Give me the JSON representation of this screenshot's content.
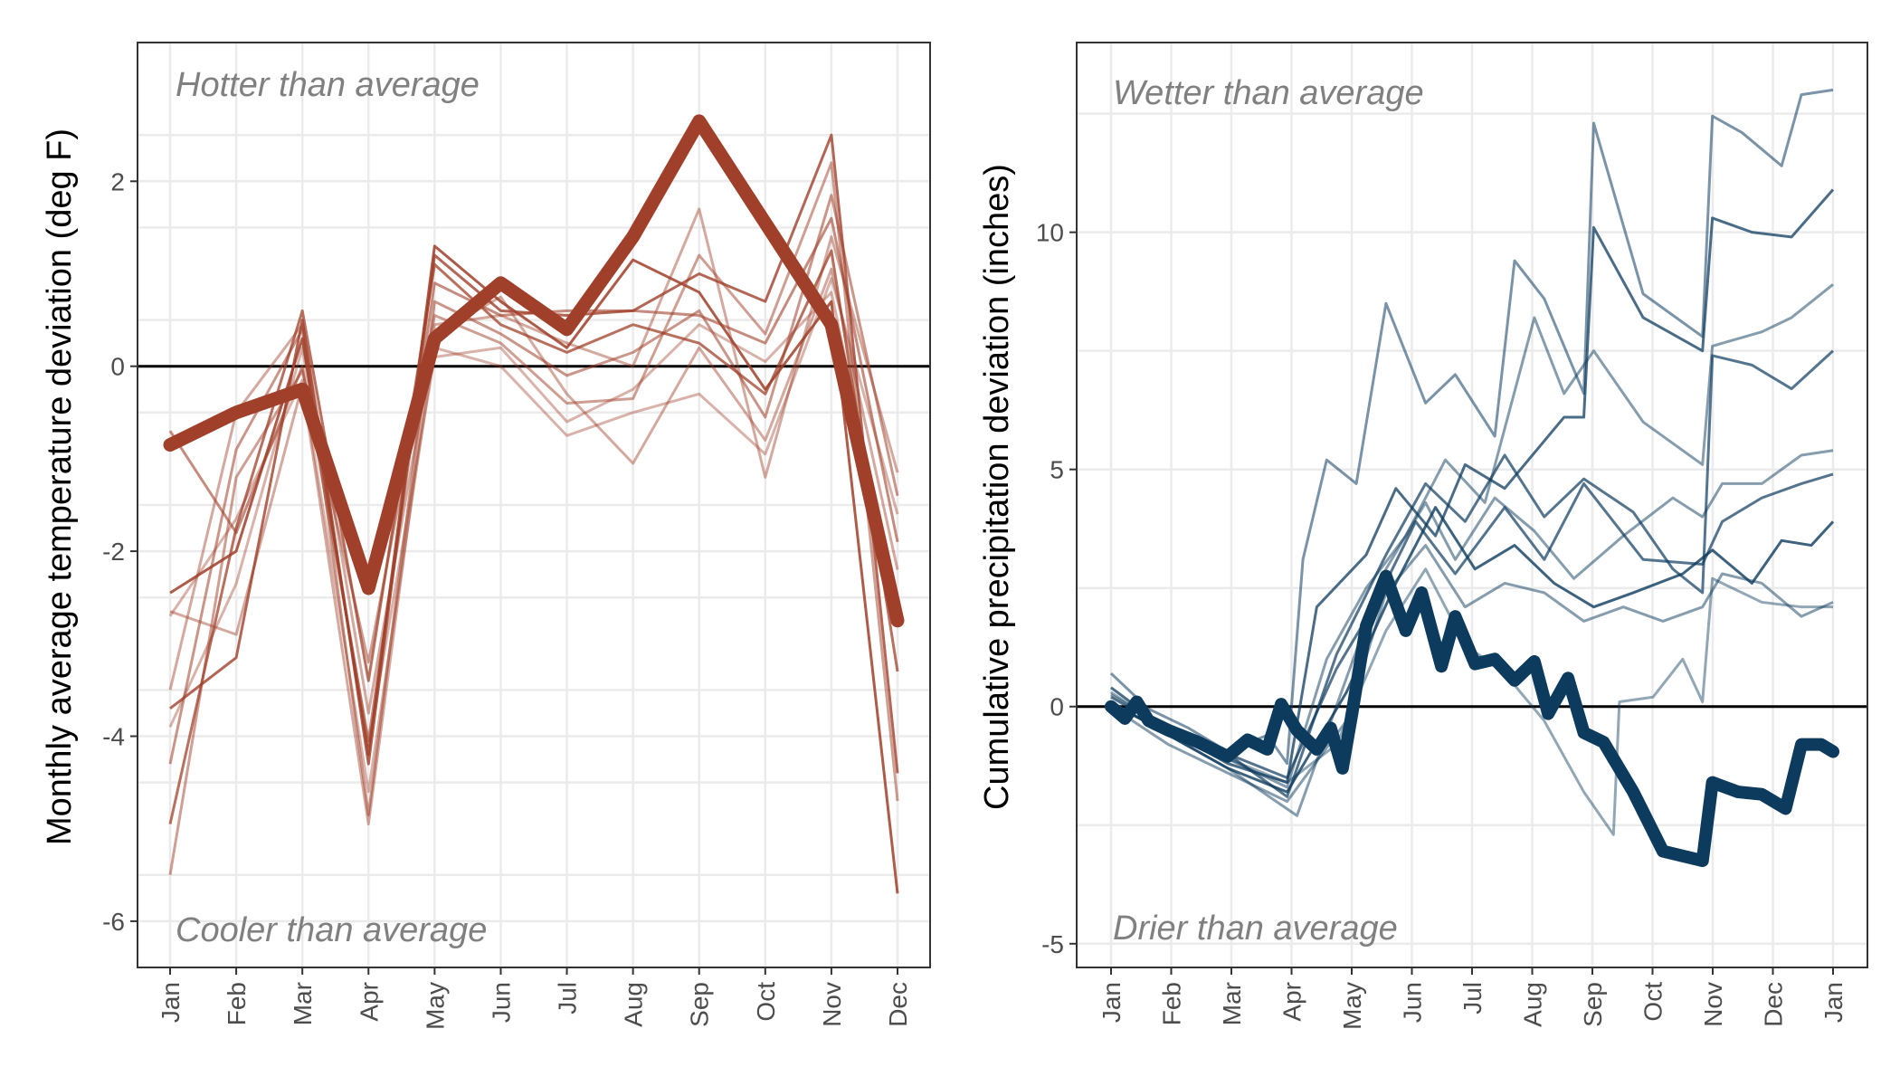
{
  "colors": {
    "temperature": "#a0402a",
    "precipitation": "#0d3b5e",
    "grid": "#ebebeb",
    "annotation": "#808080"
  },
  "chart_data": [
    {
      "type": "line",
      "title": "",
      "xlabel": "",
      "ylabel": "Monthly average temperature deviation (deg F)",
      "ylim": [
        -6.5,
        3.5
      ],
      "yticks": [
        -6,
        -4,
        -2,
        0,
        2
      ],
      "ytick_labels": [
        "-6",
        "-4",
        "-2",
        "0",
        "2"
      ],
      "categories": [
        "Jan",
        "Feb",
        "Mar",
        "Apr",
        "May",
        "Jun",
        "Jul",
        "Aug",
        "Sep",
        "Oct",
        "Nov",
        "Dec"
      ],
      "reference_line": 0,
      "grid": true,
      "annotations": {
        "top": "Hotter than average",
        "bottom": "Cooler than average"
      },
      "highlight_series": {
        "values": [
          -0.85,
          -0.5,
          -0.25,
          -2.4,
          0.3,
          0.9,
          0.4,
          1.4,
          2.65,
          1.55,
          0.45,
          -2.75
        ]
      },
      "series": [
        {
          "values": [
            -2.45,
            -2.0,
            0.3,
            -4.2,
            1.3,
            0.7,
            0.2,
            1.15,
            0.8,
            -0.25,
            0.7,
            -5.7
          ],
          "opacity": 0.85
        },
        {
          "values": [
            -3.7,
            -3.15,
            0.5,
            -4.3,
            1.2,
            0.6,
            0.55,
            0.6,
            1.0,
            0.7,
            2.5,
            -4.4
          ],
          "opacity": 0.8
        },
        {
          "values": [
            -4.95,
            -1.75,
            0.6,
            -3.4,
            1.1,
            0.45,
            0.15,
            0.45,
            0.25,
            -0.3,
            1.25,
            -3.3
          ],
          "opacity": 0.75
        },
        {
          "values": [
            -0.7,
            -1.8,
            0.0,
            -4.05,
            0.9,
            0.55,
            0.6,
            0.6,
            0.55,
            0.25,
            1.6,
            -1.9
          ],
          "opacity": 0.6
        },
        {
          "values": [
            -4.3,
            -0.9,
            0.4,
            -4.85,
            0.7,
            0.35,
            -0.1,
            0.15,
            0.6,
            -0.55,
            1.85,
            -1.4
          ],
          "opacity": 0.55
        },
        {
          "values": [
            -5.5,
            -1.2,
            -0.05,
            -3.2,
            0.55,
            0.25,
            -0.4,
            -0.35,
            1.2,
            0.35,
            2.2,
            -4.7
          ],
          "opacity": 0.5
        },
        {
          "values": [
            -2.65,
            -2.9,
            -0.2,
            -4.95,
            0.45,
            0.55,
            0.25,
            0.0,
            1.7,
            -1.2,
            1.4,
            -1.15
          ],
          "opacity": 0.45
        },
        {
          "values": [
            -3.5,
            -0.5,
            0.45,
            -3.75,
            0.35,
            0.75,
            -0.3,
            -1.05,
            0.2,
            -0.8,
            1.05,
            -2.2
          ],
          "opacity": 0.45
        },
        {
          "values": [
            -2.7,
            -1.65,
            -0.15,
            -4.6,
            0.2,
            0.0,
            -0.75,
            -0.5,
            -0.3,
            -0.95,
            0.95,
            -1.6
          ],
          "opacity": 0.4
        },
        {
          "values": [
            -3.9,
            -2.35,
            0.2,
            -4.1,
            0.1,
            0.2,
            -0.6,
            -0.25,
            0.45,
            0.05,
            0.8,
            -2.6
          ],
          "opacity": 0.4
        }
      ]
    },
    {
      "type": "line",
      "title": "",
      "xlabel": "",
      "ylabel": "Cumulative precipitation deviation (inches)",
      "ylim": [
        -5.5,
        14.0
      ],
      "yticks": [
        -5,
        0,
        5,
        10
      ],
      "ytick_labels": [
        "-5",
        "0",
        "5",
        "10"
      ],
      "xticks": [
        "Jan",
        "Feb",
        "Mar",
        "Apr",
        "May",
        "Jun",
        "Jul",
        "Aug",
        "Sep",
        "Oct",
        "Nov",
        "Dec",
        "Jan"
      ],
      "xlim_days": [
        1,
        366
      ],
      "reference_line": 0,
      "grid": true,
      "annotations": {
        "top": "Wetter than average",
        "bottom": "Drier than average"
      },
      "highlight_series": {
        "points": [
          [
            1,
            0.0
          ],
          [
            8,
            -0.25
          ],
          [
            14,
            0.1
          ],
          [
            20,
            -0.3
          ],
          [
            30,
            -0.5
          ],
          [
            45,
            -0.75
          ],
          [
            60,
            -1.05
          ],
          [
            70,
            -0.7
          ],
          [
            80,
            -0.9
          ],
          [
            87,
            0.05
          ],
          [
            95,
            -0.5
          ],
          [
            105,
            -0.9
          ],
          [
            112,
            -0.45
          ],
          [
            118,
            -1.3
          ],
          [
            123,
            -0.1
          ],
          [
            130,
            1.7
          ],
          [
            140,
            2.75
          ],
          [
            150,
            1.6
          ],
          [
            158,
            2.4
          ],
          [
            168,
            0.85
          ],
          [
            175,
            1.9
          ],
          [
            185,
            0.9
          ],
          [
            195,
            1.0
          ],
          [
            205,
            0.55
          ],
          [
            215,
            0.95
          ],
          [
            222,
            -0.15
          ],
          [
            232,
            0.6
          ],
          [
            240,
            -0.55
          ],
          [
            250,
            -0.75
          ],
          [
            265,
            -1.8
          ],
          [
            280,
            -3.05
          ],
          [
            300,
            -3.25
          ],
          [
            305,
            -1.6
          ],
          [
            318,
            -1.8
          ],
          [
            330,
            -1.85
          ],
          [
            342,
            -2.15
          ],
          [
            350,
            -0.8
          ],
          [
            360,
            -0.8
          ],
          [
            366,
            -0.95
          ]
        ]
      },
      "series": [
        {
          "points": [
            [
              1,
              0.7
            ],
            [
              20,
              -0.05
            ],
            [
              40,
              -0.45
            ],
            [
              60,
              -0.95
            ],
            [
              80,
              -0.6
            ],
            [
              90,
              -1.2
            ],
            [
              98,
              3.1
            ],
            [
              110,
              5.2
            ],
            [
              125,
              4.7
            ],
            [
              140,
              8.5
            ],
            [
              160,
              6.4
            ],
            [
              175,
              7.0
            ],
            [
              195,
              5.7
            ],
            [
              205,
              9.4
            ],
            [
              220,
              8.6
            ],
            [
              240,
              6.6
            ],
            [
              245,
              12.3
            ],
            [
              270,
              8.7
            ],
            [
              300,
              7.8
            ],
            [
              305,
              12.45
            ],
            [
              320,
              12.1
            ],
            [
              340,
              11.4
            ],
            [
              350,
              12.9
            ],
            [
              366,
              13.0
            ]
          ],
          "opacity": 0.55
        },
        {
          "points": [
            [
              1,
              0.4
            ],
            [
              30,
              -0.5
            ],
            [
              60,
              -1.2
            ],
            [
              90,
              -1.6
            ],
            [
              105,
              2.1
            ],
            [
              130,
              3.2
            ],
            [
              145,
              4.6
            ],
            [
              165,
              3.6
            ],
            [
              180,
              5.1
            ],
            [
              200,
              4.6
            ],
            [
              230,
              6.1
            ],
            [
              240,
              6.1
            ],
            [
              245,
              10.1
            ],
            [
              270,
              8.2
            ],
            [
              300,
              7.5
            ],
            [
              305,
              10.3
            ],
            [
              325,
              10.0
            ],
            [
              345,
              9.9
            ],
            [
              366,
              10.9
            ]
          ],
          "opacity": 0.75
        },
        {
          "points": [
            [
              1,
              0.25
            ],
            [
              30,
              -0.45
            ],
            [
              60,
              -1.1
            ],
            [
              90,
              -1.7
            ],
            [
              110,
              1.0
            ],
            [
              130,
              2.5
            ],
            [
              150,
              3.6
            ],
            [
              170,
              5.2
            ],
            [
              190,
              4.3
            ],
            [
              215,
              8.2
            ],
            [
              230,
              6.6
            ],
            [
              245,
              7.5
            ],
            [
              270,
              6.0
            ],
            [
              300,
              5.1
            ],
            [
              305,
              7.6
            ],
            [
              330,
              7.9
            ],
            [
              345,
              8.2
            ],
            [
              366,
              8.9
            ]
          ],
          "opacity": 0.5
        },
        {
          "points": [
            [
              1,
              0.2
            ],
            [
              30,
              -0.5
            ],
            [
              60,
              -1.0
            ],
            [
              90,
              -1.9
            ],
            [
              115,
              1.1
            ],
            [
              140,
              3.2
            ],
            [
              160,
              4.7
            ],
            [
              180,
              3.9
            ],
            [
              200,
              5.3
            ],
            [
              220,
              4.0
            ],
            [
              240,
              4.8
            ],
            [
              265,
              4.1
            ],
            [
              285,
              2.9
            ],
            [
              300,
              2.4
            ],
            [
              305,
              7.4
            ],
            [
              325,
              7.2
            ],
            [
              345,
              6.7
            ],
            [
              366,
              7.5
            ]
          ],
          "opacity": 0.7
        },
        {
          "points": [
            [
              1,
              0.1
            ],
            [
              30,
              -0.6
            ],
            [
              60,
              -1.3
            ],
            [
              95,
              -2.3
            ],
            [
              120,
              0.6
            ],
            [
              140,
              2.9
            ],
            [
              160,
              4.3
            ],
            [
              175,
              3.1
            ],
            [
              195,
              4.4
            ],
            [
              215,
              3.7
            ],
            [
              235,
              2.7
            ],
            [
              260,
              3.6
            ],
            [
              285,
              4.4
            ],
            [
              300,
              4.0
            ],
            [
              310,
              4.7
            ],
            [
              330,
              4.7
            ],
            [
              350,
              5.3
            ],
            [
              366,
              5.4
            ]
          ],
          "opacity": 0.5
        },
        {
          "points": [
            [
              1,
              0.05
            ],
            [
              30,
              -0.55
            ],
            [
              60,
              -1.0
            ],
            [
              90,
              -1.5
            ],
            [
              115,
              0.8
            ],
            [
              135,
              2.2
            ],
            [
              155,
              3.9
            ],
            [
              175,
              2.8
            ],
            [
              200,
              4.2
            ],
            [
              220,
              3.1
            ],
            [
              240,
              4.7
            ],
            [
              270,
              3.1
            ],
            [
              300,
              3.0
            ],
            [
              310,
              3.9
            ],
            [
              330,
              4.4
            ],
            [
              350,
              4.7
            ],
            [
              366,
              4.9
            ]
          ],
          "opacity": 0.7
        },
        {
          "points": [
            [
              1,
              0.1
            ],
            [
              30,
              -0.6
            ],
            [
              60,
              -1.3
            ],
            [
              90,
              -1.8
            ],
            [
              120,
              0.3
            ],
            [
              145,
              2.6
            ],
            [
              165,
              4.2
            ],
            [
              185,
              2.9
            ],
            [
              205,
              3.4
            ],
            [
              225,
              2.6
            ],
            [
              245,
              2.1
            ],
            [
              265,
              2.4
            ],
            [
              290,
              2.8
            ],
            [
              305,
              3.3
            ],
            [
              325,
              2.6
            ],
            [
              340,
              3.5
            ],
            [
              355,
              3.4
            ],
            [
              366,
              3.9
            ]
          ],
          "opacity": 0.8
        },
        {
          "points": [
            [
              1,
              0.0
            ],
            [
              30,
              -0.8
            ],
            [
              60,
              -1.4
            ],
            [
              90,
              -2.0
            ],
            [
              120,
              -0.3
            ],
            [
              140,
              2.4
            ],
            [
              160,
              3.4
            ],
            [
              180,
              2.1
            ],
            [
              200,
              2.6
            ],
            [
              220,
              2.4
            ],
            [
              240,
              1.8
            ],
            [
              260,
              2.1
            ],
            [
              280,
              1.8
            ],
            [
              300,
              2.1
            ],
            [
              310,
              2.8
            ],
            [
              330,
              2.6
            ],
            [
              350,
              1.9
            ],
            [
              366,
              2.2
            ]
          ],
          "opacity": 0.5
        },
        {
          "points": [
            [
              1,
              0.3
            ],
            [
              30,
              -0.5
            ],
            [
              60,
              -1.1
            ],
            [
              90,
              -1.6
            ],
            [
              115,
              -0.8
            ],
            [
              140,
              1.6
            ],
            [
              160,
              2.9
            ],
            [
              180,
              1.3
            ],
            [
              200,
              0.7
            ],
            [
              220,
              -0.3
            ],
            [
              240,
              -1.8
            ],
            [
              255,
              -2.7
            ],
            [
              258,
              0.1
            ],
            [
              275,
              0.2
            ],
            [
              290,
              1.0
            ],
            [
              300,
              0.1
            ],
            [
              305,
              2.7
            ],
            [
              330,
              2.2
            ],
            [
              350,
              2.1
            ],
            [
              366,
              2.1
            ]
          ],
          "opacity": 0.45
        }
      ]
    }
  ]
}
